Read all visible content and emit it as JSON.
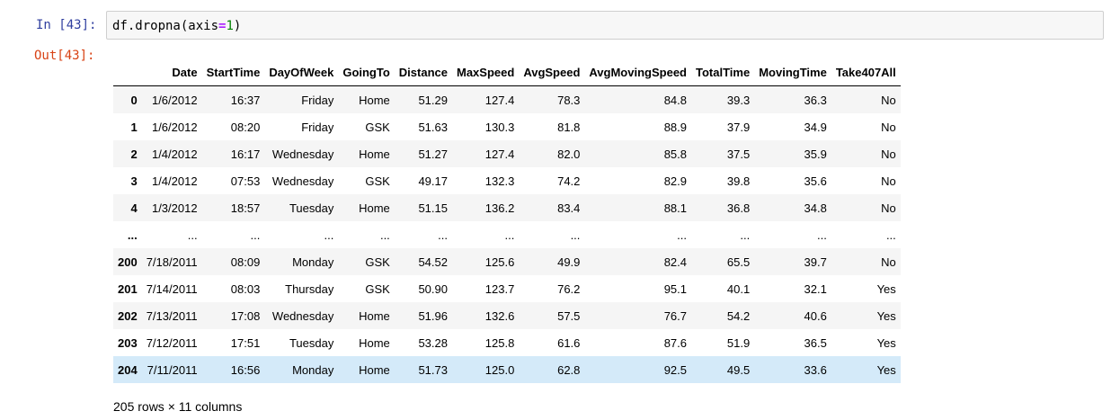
{
  "cell": {
    "in_prompt": "In [43]:",
    "out_prompt": "Out[43]:",
    "code": {
      "prefix": "df.dropna(axis",
      "equals": "=",
      "number": "1",
      "suffix": ")"
    }
  },
  "table": {
    "columns": [
      "",
      "Date",
      "StartTime",
      "DayOfWeek",
      "GoingTo",
      "Distance",
      "MaxSpeed",
      "AvgSpeed",
      "AvgMovingSpeed",
      "TotalTime",
      "MovingTime",
      "Take407All"
    ],
    "rows": [
      [
        "0",
        "1/6/2012",
        "16:37",
        "Friday",
        "Home",
        "51.29",
        "127.4",
        "78.3",
        "84.8",
        "39.3",
        "36.3",
        "No"
      ],
      [
        "1",
        "1/6/2012",
        "08:20",
        "Friday",
        "GSK",
        "51.63",
        "130.3",
        "81.8",
        "88.9",
        "37.9",
        "34.9",
        "No"
      ],
      [
        "2",
        "1/4/2012",
        "16:17",
        "Wednesday",
        "Home",
        "51.27",
        "127.4",
        "82.0",
        "85.8",
        "37.5",
        "35.9",
        "No"
      ],
      [
        "3",
        "1/4/2012",
        "07:53",
        "Wednesday",
        "GSK",
        "49.17",
        "132.3",
        "74.2",
        "82.9",
        "39.8",
        "35.6",
        "No"
      ],
      [
        "4",
        "1/3/2012",
        "18:57",
        "Tuesday",
        "Home",
        "51.15",
        "136.2",
        "83.4",
        "88.1",
        "36.8",
        "34.8",
        "No"
      ],
      [
        "...",
        "...",
        "...",
        "...",
        "...",
        "...",
        "...",
        "...",
        "...",
        "...",
        "...",
        "..."
      ],
      [
        "200",
        "7/18/2011",
        "08:09",
        "Monday",
        "GSK",
        "54.52",
        "125.6",
        "49.9",
        "82.4",
        "65.5",
        "39.7",
        "No"
      ],
      [
        "201",
        "7/14/2011",
        "08:03",
        "Thursday",
        "GSK",
        "50.90",
        "123.7",
        "76.2",
        "95.1",
        "40.1",
        "32.1",
        "Yes"
      ],
      [
        "202",
        "7/13/2011",
        "17:08",
        "Wednesday",
        "Home",
        "51.96",
        "132.6",
        "57.5",
        "76.7",
        "54.2",
        "40.6",
        "Yes"
      ],
      [
        "203",
        "7/12/2011",
        "17:51",
        "Tuesday",
        "Home",
        "53.28",
        "125.8",
        "61.6",
        "87.6",
        "51.9",
        "36.5",
        "Yes"
      ],
      [
        "204",
        "7/11/2011",
        "16:56",
        "Monday",
        "Home",
        "51.73",
        "125.0",
        "62.8",
        "92.5",
        "49.5",
        "33.6",
        "Yes"
      ]
    ],
    "hovered_row": 10
  },
  "shape_note": "205 rows × 11 columns",
  "colors": {
    "in_prompt": "#303f9f",
    "out_prompt": "#d84315",
    "code_bg": "#f7f7f7",
    "code_border": "#cfcfcf",
    "row_stripe": "#f5f5f5",
    "row_hover": "#d4eaf9"
  }
}
